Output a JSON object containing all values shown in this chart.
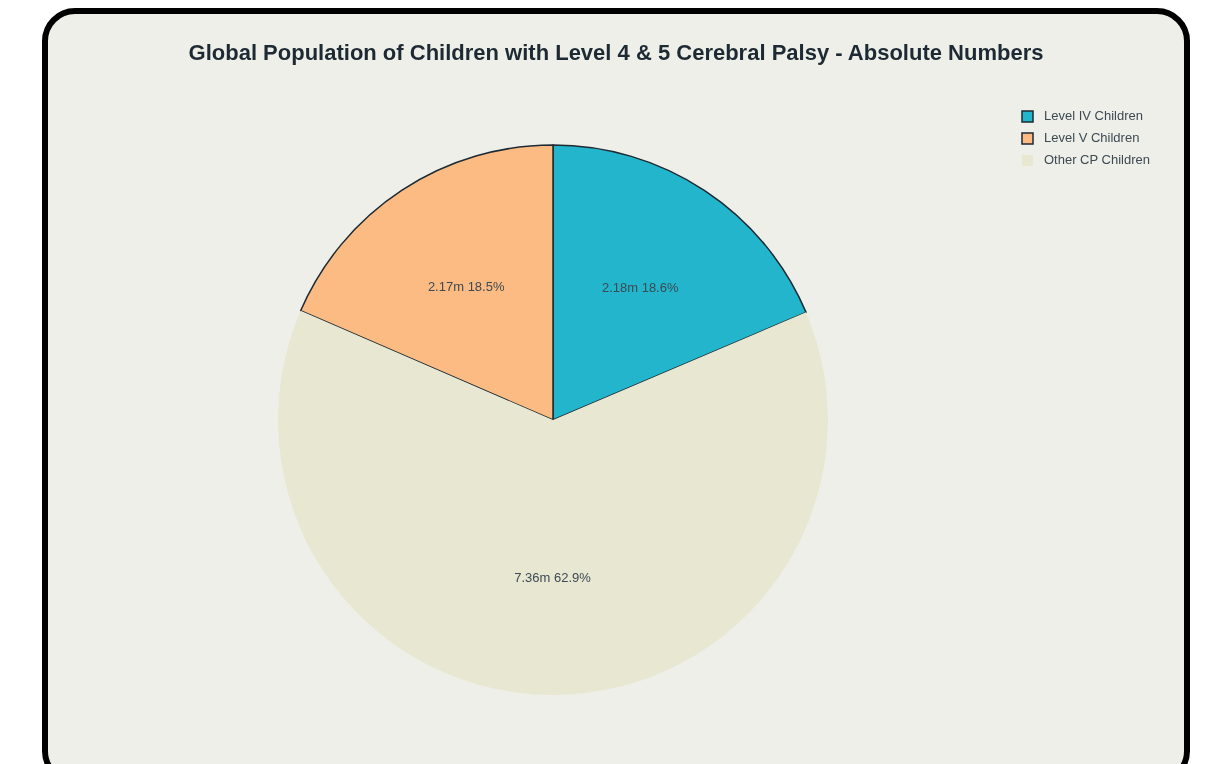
{
  "chart_data": {
    "type": "pie",
    "title": "Global Population of Children with Level 4 & 5 Cerebral Palsy - Absolute Numbers",
    "categories": [
      "Level IV Children",
      "Level V Children",
      "Other CP Children"
    ],
    "values": [
      18.6,
      18.5,
      62.9
    ],
    "value_labels": [
      "2.18m 18.6%",
      "2.17m 18.5%",
      "7.36m 62.9%"
    ],
    "colors": [
      "#22b5cc",
      "#fcbb82",
      "#e8e8d2"
    ],
    "legend": "top right"
  }
}
